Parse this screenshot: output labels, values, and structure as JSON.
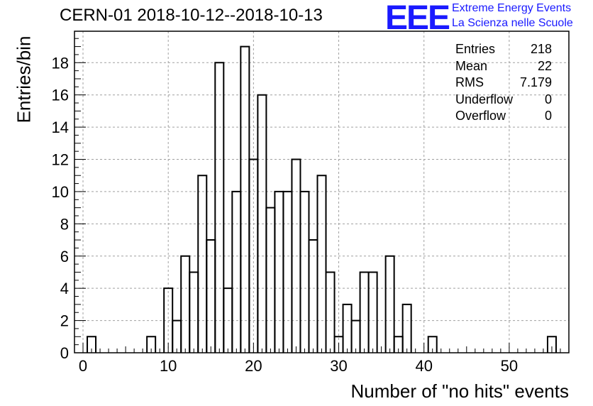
{
  "title": "CERN-01 2018-10-12--2018-10-13",
  "logo": {
    "mark": "EEE",
    "line1": "Extreme Energy Events",
    "line2": "La Scienza nelle Scuole",
    "color": "#1a1aff"
  },
  "stats": [
    {
      "label": "Entries",
      "value": "218"
    },
    {
      "label": "Mean",
      "value": "22"
    },
    {
      "label": "RMS",
      "value": "7.179"
    },
    {
      "label": "Underflow",
      "value": "0"
    },
    {
      "label": "Overflow",
      "value": "0"
    }
  ],
  "chart_data": {
    "type": "bar",
    "style": "step-histogram",
    "title": "CERN-01 2018-10-12--2018-10-13",
    "xlabel": "Number of \"no hits\" events",
    "ylabel": "Entries/bin",
    "xlim": [
      -1,
      57
    ],
    "ylim": [
      0,
      19.95
    ],
    "bin_width": 1,
    "x_ticks": [
      0,
      10,
      20,
      30,
      40,
      50
    ],
    "y_ticks": [
      0,
      2,
      4,
      6,
      8,
      10,
      12,
      14,
      16,
      18
    ],
    "grid": true,
    "bins": [
      {
        "x": 1,
        "count": 1
      },
      {
        "x": 8,
        "count": 1
      },
      {
        "x": 10,
        "count": 4
      },
      {
        "x": 11,
        "count": 2
      },
      {
        "x": 12,
        "count": 6
      },
      {
        "x": 13,
        "count": 5
      },
      {
        "x": 14,
        "count": 11
      },
      {
        "x": 15,
        "count": 7
      },
      {
        "x": 16,
        "count": 18
      },
      {
        "x": 17,
        "count": 4
      },
      {
        "x": 18,
        "count": 10
      },
      {
        "x": 19,
        "count": 19
      },
      {
        "x": 20,
        "count": 12
      },
      {
        "x": 21,
        "count": 16
      },
      {
        "x": 22,
        "count": 9
      },
      {
        "x": 23,
        "count": 10
      },
      {
        "x": 24,
        "count": 10
      },
      {
        "x": 25,
        "count": 12
      },
      {
        "x": 26,
        "count": 10
      },
      {
        "x": 27,
        "count": 7
      },
      {
        "x": 28,
        "count": 11
      },
      {
        "x": 29,
        "count": 5
      },
      {
        "x": 30,
        "count": 1
      },
      {
        "x": 31,
        "count": 3
      },
      {
        "x": 32,
        "count": 2
      },
      {
        "x": 33,
        "count": 5
      },
      {
        "x": 34,
        "count": 5
      },
      {
        "x": 36,
        "count": 6
      },
      {
        "x": 37,
        "count": 1
      },
      {
        "x": 38,
        "count": 3
      },
      {
        "x": 41,
        "count": 1
      },
      {
        "x": 55,
        "count": 1
      }
    ]
  }
}
